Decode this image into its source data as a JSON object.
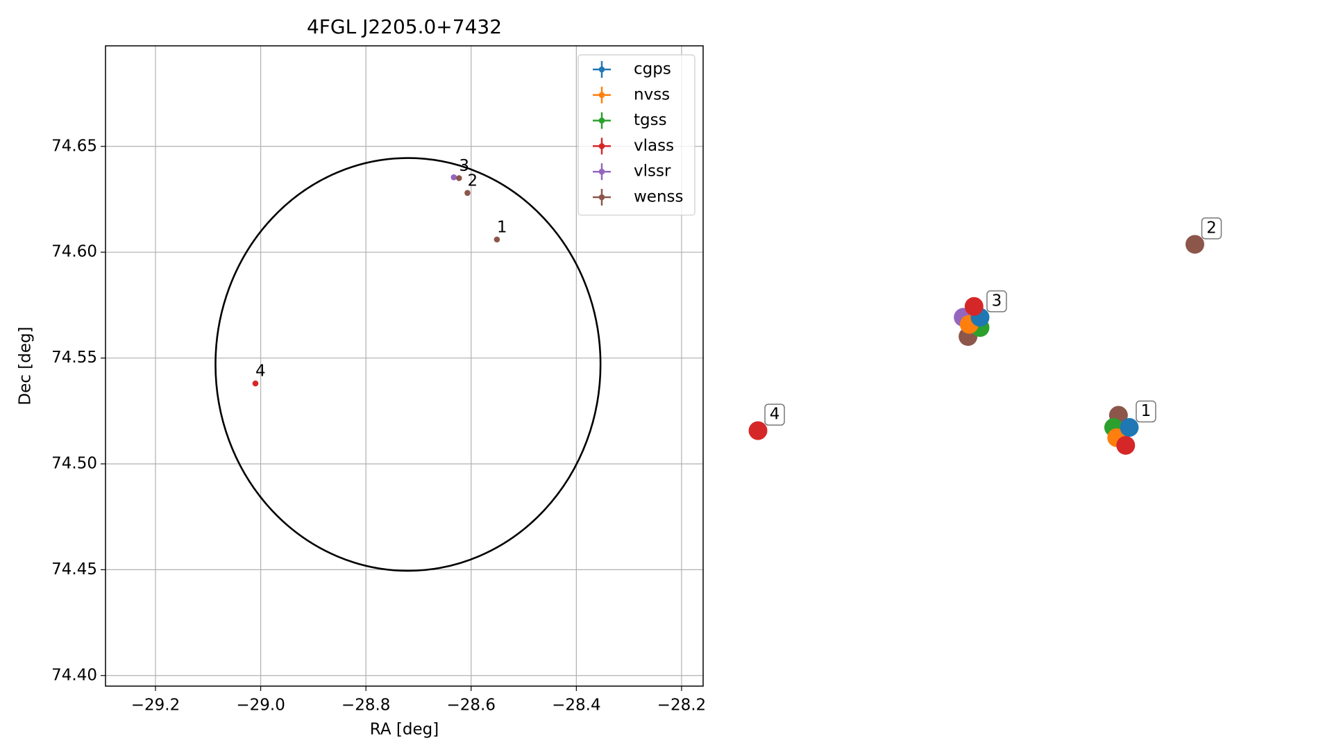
{
  "chart_data": [
    {
      "type": "scatter",
      "title": "4FGL J2205.0+7432",
      "xlabel": "RA [deg]",
      "ylabel": "Dec [deg]",
      "xlim": [
        -29.295,
        -28.159
      ],
      "ylim": [
        74.395,
        74.6975
      ],
      "xticks": [
        {
          "value": -29.2,
          "label": "−29.2"
        },
        {
          "value": -29.0,
          "label": "−29.0"
        },
        {
          "value": -28.8,
          "label": "−28.8"
        },
        {
          "value": -28.6,
          "label": "−28.6"
        },
        {
          "value": -28.4,
          "label": "−28.4"
        },
        {
          "value": -28.2,
          "label": "−28.2"
        }
      ],
      "yticks": [
        {
          "value": 74.4,
          "label": "74.40"
        },
        74.45,
        {
          "value": 74.5,
          "label": "74.50"
        },
        74.55,
        {
          "value": 74.6,
          "label": "74.60"
        },
        74.65
      ],
      "grid": true,
      "legend": "upper right",
      "circle": {
        "ra": -28.72,
        "dec": 74.547,
        "radius": 0.0975,
        "color": "#000000"
      },
      "series": [
        {
          "name": "cgps",
          "color": "#1f77b4",
          "x": [],
          "y": []
        },
        {
          "name": "nvss",
          "color": "#ff7f0e",
          "x": [],
          "y": []
        },
        {
          "name": "tgss",
          "color": "#2ca02c",
          "x": [],
          "y": []
        },
        {
          "name": "vlass",
          "color": "#d62728",
          "x": [
            -29.01
          ],
          "y": [
            74.538
          ]
        },
        {
          "name": "vlssr",
          "color": "#9467bd",
          "x": [
            -28.633
          ],
          "y": [
            74.6354
          ]
        },
        {
          "name": "wenss",
          "color": "#8c564b",
          "x": [
            -28.623,
            -28.607,
            -28.551
          ],
          "y": [
            74.635,
            74.628,
            74.606
          ]
        }
      ],
      "annotations": [
        {
          "text": "1",
          "x": -28.551,
          "y": 74.606
        },
        {
          "text": "2",
          "x": -28.607,
          "y": 74.628
        },
        {
          "text": "3",
          "x": -28.623,
          "y": 74.635
        },
        {
          "text": "4",
          "x": -29.01,
          "y": 74.538
        }
      ]
    },
    {
      "type": "scatter",
      "axes": false,
      "annotation_style": "boxed",
      "xlim": [
        0,
        100
      ],
      "ylim": [
        0,
        100
      ],
      "series": [
        {
          "color": "#8c564b",
          "x": [
            65.9,
            78.6,
            40.9
          ],
          "y": [
            42.3,
            69.0,
            54.6
          ]
        },
        {
          "color": "#9467bd",
          "x": [
            40.1
          ],
          "y": [
            57.6
          ]
        },
        {
          "color": "#2ca02c",
          "x": [
            65.1,
            42.9
          ],
          "y": [
            40.4,
            56.0
          ]
        },
        {
          "color": "#ff7f0e",
          "x": [
            65.6,
            41.1
          ],
          "y": [
            38.8,
            56.5
          ]
        },
        {
          "color": "#1f77b4",
          "x": [
            67.7,
            42.9
          ],
          "y": [
            40.4,
            57.6
          ]
        },
        {
          "color": "#d62728",
          "x": [
            67.1,
            41.9,
            6.0
          ],
          "y": [
            37.6,
            59.3,
            39.9
          ]
        }
      ],
      "annotations": [
        {
          "text": "1",
          "x": 67.7,
          "y": 40.4
        },
        {
          "text": "2",
          "x": 78.6,
          "y": 69.0
        },
        {
          "text": "3",
          "x": 42.9,
          "y": 57.6
        },
        {
          "text": "4",
          "x": 6.0,
          "y": 39.9
        }
      ]
    }
  ]
}
